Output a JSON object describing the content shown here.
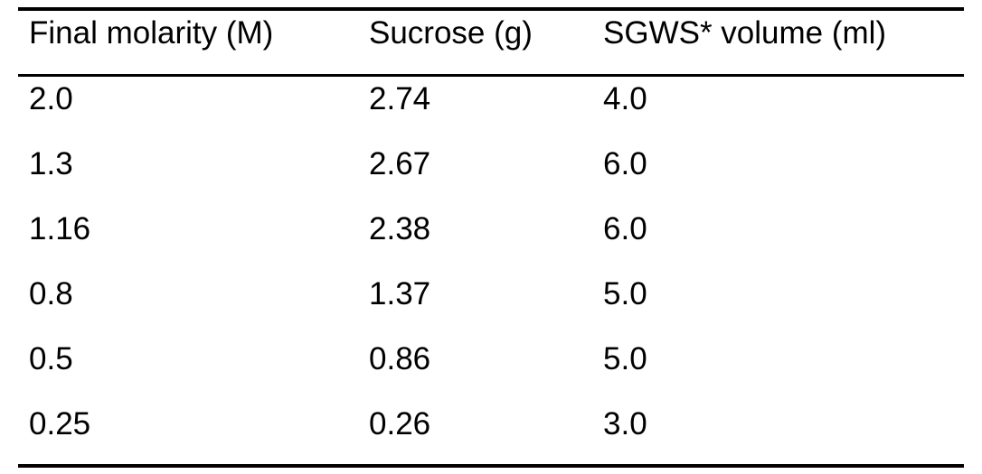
{
  "table": {
    "headers": [
      "Final molarity (M)",
      "Sucrose (g)",
      "SGWS* volume (ml)"
    ],
    "rows": [
      [
        "2.0",
        "2.74",
        "4.0"
      ],
      [
        "1.3",
        "2.67",
        "6.0"
      ],
      [
        "1.16",
        "2.38",
        "6.0"
      ],
      [
        "0.8",
        "1.37",
        "5.0"
      ],
      [
        "0.5",
        "0.86",
        "5.0"
      ],
      [
        "0.25",
        "0.26",
        "3.0"
      ]
    ]
  }
}
